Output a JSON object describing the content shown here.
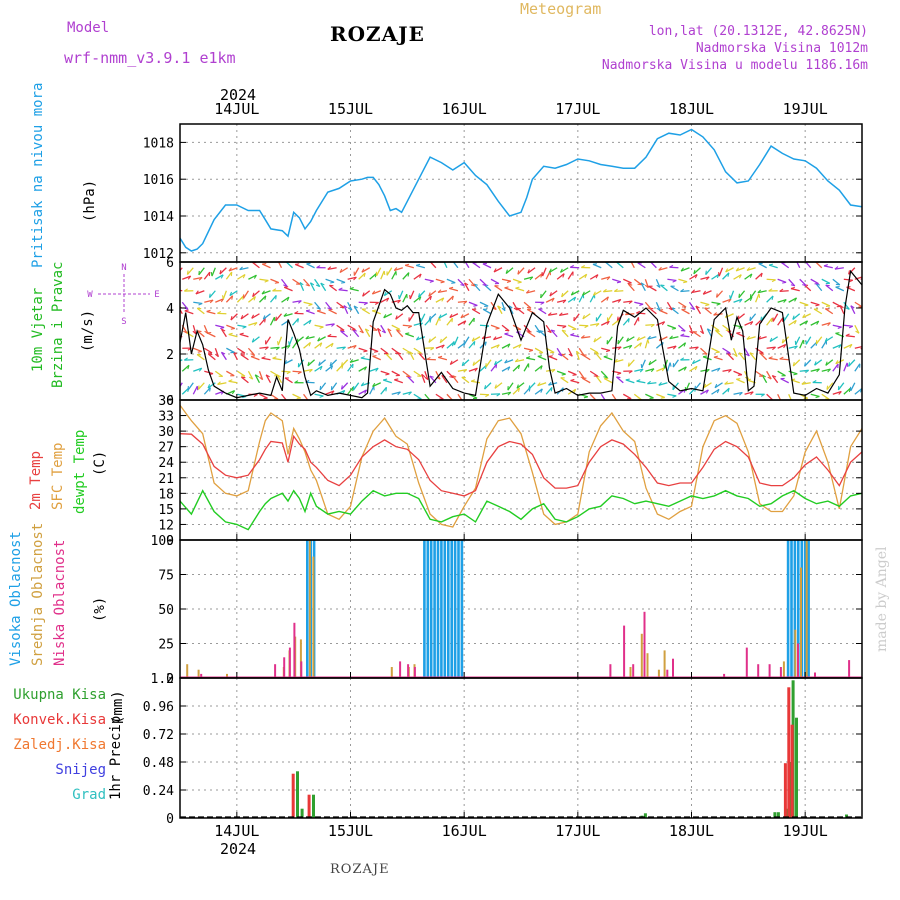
{
  "header": {
    "model_label": "Model",
    "model_name": "wrf-nmm_v3.9.1 e1km",
    "station": "ROZAJE",
    "meteogram": "Meteogram",
    "lonlat": "lon,lat (20.1312E, 42.8625N)",
    "altitude": "Nadmorska Visina 1012m",
    "model_altitude": "Nadmorska Visina u modelu 1186.16m",
    "footer_station": "ROZAJE",
    "watermark": "made by Angel"
  },
  "colors": {
    "pressure": "#1ea0e6",
    "wind_axis_label": "#22bb22",
    "compass": "#b040d0",
    "t2m": "#e84040",
    "sfc": "#e0a040",
    "dewpt": "#22cc22",
    "cloud_high": "#1ea0e6",
    "cloud_mid": "#d0a040",
    "cloud_low": "#e0308a",
    "precip_total": "#30a030",
    "precip_conv": "#e83838",
    "precip_frozen": "#f07830",
    "snow": "#4040e0",
    "hail": "#30c0c0",
    "wind_barbs": [
      "#9b30e0",
      "#2ea0d0",
      "#20c0c0",
      "#30c030",
      "#e0d030",
      "#e83040",
      "#f06040"
    ]
  },
  "time_axis": {
    "year_label": "2024",
    "day_labels": [
      "14JUL",
      "15JUL",
      "16JUL",
      "17JUL",
      "18JUL",
      "19JUL"
    ]
  },
  "compass": {
    "n": "N",
    "s": "S",
    "w": "W",
    "e": "E"
  },
  "chart_data": [
    {
      "type": "line",
      "name": "pressure",
      "ylabel_main": "Pritisak na nivou mora",
      "ylabel_unit": "(hPa)",
      "ylim": [
        1011.5,
        1019
      ],
      "yticks": [
        1012,
        1014,
        1016,
        1018
      ],
      "x_unit": "days from 14JUL 00:00",
      "x_range": [
        -0.5,
        5.5
      ],
      "x": [
        -0.5,
        -0.45,
        -0.4,
        -0.35,
        -0.3,
        -0.2,
        -0.1,
        0,
        0.1,
        0.2,
        0.25,
        0.3,
        0.4,
        0.45,
        0.5,
        0.55,
        0.6,
        0.65,
        0.7,
        0.8,
        0.9,
        1,
        1.1,
        1.15,
        1.2,
        1.25,
        1.3,
        1.35,
        1.4,
        1.45,
        1.5,
        1.6,
        1.7,
        1.8,
        1.9,
        2,
        2.1,
        2.2,
        2.3,
        2.4,
        2.5,
        2.55,
        2.6,
        2.7,
        2.8,
        2.9,
        3,
        3.1,
        3.2,
        3.3,
        3.4,
        3.5,
        3.6,
        3.7,
        3.8,
        3.9,
        4,
        4.1,
        4.2,
        4.3,
        4.4,
        4.5,
        4.6,
        4.7,
        4.8,
        4.9,
        5,
        5.1,
        5.2,
        5.3,
        5.4,
        5.5
      ],
      "values": [
        1012.8,
        1012.3,
        1012.1,
        1012.2,
        1012.5,
        1013.8,
        1014.6,
        1014.6,
        1014.3,
        1014.3,
        1013.8,
        1013.3,
        1013.2,
        1012.9,
        1014.2,
        1013.9,
        1013.3,
        1013.7,
        1014.3,
        1015.3,
        1015.5,
        1015.9,
        1016.0,
        1016.1,
        1016.1,
        1015.7,
        1015.1,
        1014.3,
        1014.4,
        1014.2,
        1014.8,
        1016.0,
        1017.2,
        1016.9,
        1016.5,
        1016.9,
        1016.2,
        1015.7,
        1014.8,
        1014.0,
        1014.2,
        1015.0,
        1016.0,
        1016.7,
        1016.6,
        1016.8,
        1017.1,
        1017.0,
        1016.8,
        1016.7,
        1016.6,
        1016.6,
        1017.2,
        1018.2,
        1018.5,
        1018.4,
        1018.7,
        1018.3,
        1017.6,
        1016.4,
        1015.8,
        1015.9,
        1016.8,
        1017.8,
        1017.4,
        1017.1,
        1017.0,
        1016.6,
        1015.9,
        1015.4,
        1014.6,
        1014.5
      ]
    },
    {
      "type": "line",
      "name": "wind",
      "ylabel_main": "10m Vjetar",
      "ylabel_second": "Brzina i Pravac",
      "ylabel_unit": "(m/s)",
      "ylim": [
        0,
        6
      ],
      "yticks": [
        0,
        2,
        4,
        6
      ],
      "x_unit": "days from 14JUL 00:00",
      "x_range": [
        -0.5,
        5.5
      ],
      "x": [
        -0.5,
        -0.45,
        -0.4,
        -0.35,
        -0.3,
        -0.25,
        -0.2,
        -0.1,
        0,
        0.1,
        0.2,
        0.3,
        0.35,
        0.4,
        0.45,
        0.5,
        0.55,
        0.6,
        0.65,
        0.7,
        0.8,
        0.9,
        1,
        1.1,
        1.15,
        1.2,
        1.3,
        1.35,
        1.4,
        1.45,
        1.5,
        1.55,
        1.6,
        1.7,
        1.8,
        1.9,
        2,
        2.1,
        2.2,
        2.3,
        2.4,
        2.5,
        2.6,
        2.7,
        2.75,
        2.8,
        2.9,
        3,
        3.1,
        3.2,
        3.3,
        3.35,
        3.4,
        3.5,
        3.6,
        3.7,
        3.8,
        3.9,
        4,
        4.1,
        4.2,
        4.3,
        4.35,
        4.4,
        4.45,
        4.5,
        4.55,
        4.6,
        4.7,
        4.8,
        4.9,
        5,
        5.1,
        5.2,
        5.3,
        5.35,
        5.4,
        5.45,
        5.5
      ],
      "values": [
        2.5,
        3.8,
        2.0,
        3.0,
        2.4,
        1.3,
        0.6,
        0.3,
        0.1,
        0.2,
        0.3,
        0.2,
        1.0,
        0.4,
        3.5,
        2.9,
        2.2,
        1.0,
        0.2,
        0.4,
        0.2,
        0.3,
        0.2,
        0.1,
        0.3,
        3.4,
        4.8,
        4.6,
        4.0,
        3.9,
        4.1,
        3.8,
        3.8,
        0.6,
        1.2,
        0.5,
        0.3,
        0.2,
        3.3,
        4.6,
        4.0,
        2.6,
        3.8,
        3.4,
        1.4,
        0.3,
        0.5,
        0.2,
        0.3,
        0.3,
        0.4,
        3.2,
        3.9,
        3.6,
        4.0,
        3.5,
        0.8,
        0.4,
        0.5,
        0.4,
        3.5,
        4.0,
        2.6,
        3.6,
        3.0,
        0.4,
        0.6,
        3.3,
        4.0,
        3.8,
        0.3,
        0.2,
        0.5,
        0.3,
        1.1,
        4.0,
        5.6,
        5.3,
        5.0
      ]
    },
    {
      "type": "line",
      "name": "temperature",
      "ylabel_1": "2m Temp",
      "ylabel_2": "SFC Temp",
      "ylabel_3": "dewpt Temp",
      "ylabel_unit": "(C)",
      "ylim": [
        9,
        36
      ],
      "yticks": [
        9,
        12,
        15,
        18,
        21,
        24,
        27,
        30,
        33,
        36
      ],
      "x_unit": "days from 14JUL 00:00",
      "x_range": [
        -0.5,
        5.5
      ],
      "x": [
        -0.5,
        -0.4,
        -0.3,
        -0.2,
        -0.1,
        0,
        0.1,
        0.2,
        0.25,
        0.3,
        0.4,
        0.45,
        0.5,
        0.55,
        0.6,
        0.65,
        0.7,
        0.8,
        0.9,
        1,
        1.1,
        1.2,
        1.3,
        1.4,
        1.5,
        1.6,
        1.7,
        1.8,
        1.9,
        2,
        2.1,
        2.2,
        2.3,
        2.4,
        2.5,
        2.6,
        2.7,
        2.8,
        2.9,
        3,
        3.1,
        3.2,
        3.3,
        3.4,
        3.5,
        3.6,
        3.7,
        3.8,
        3.9,
        4,
        4.1,
        4.2,
        4.3,
        4.4,
        4.5,
        4.6,
        4.7,
        4.8,
        4.9,
        5,
        5.1,
        5.2,
        5.3,
        5.4,
        5.5
      ],
      "series": [
        {
          "name": "2m Temp",
          "values": [
            29.5,
            29.4,
            27.5,
            23.2,
            21.5,
            21.0,
            21.5,
            24.5,
            26.5,
            28.0,
            27.7,
            24.0,
            29.0,
            27.5,
            26.5,
            24.0,
            23.0,
            20.5,
            19.5,
            21.5,
            25.0,
            27.0,
            28.3,
            27.0,
            26.5,
            24.5,
            20.5,
            18.5,
            18.0,
            17.5,
            18.5,
            24.0,
            27.0,
            28.0,
            27.5,
            25.5,
            21.0,
            19.0,
            19.0,
            19.5,
            24.0,
            27.0,
            28.3,
            27.5,
            25.5,
            23.0,
            20.0,
            19.5,
            20.0,
            20.0,
            23.0,
            26.5,
            28.0,
            27.0,
            25.0,
            20.0,
            19.5,
            19.5,
            21.0,
            23.5,
            25.0,
            22.5,
            19.5,
            24.0,
            26.0
          ]
        },
        {
          "name": "SFC Temp",
          "values": [
            35.0,
            32.0,
            29.5,
            20.0,
            18.0,
            17.5,
            18.5,
            28.0,
            32.0,
            33.5,
            32.0,
            25.5,
            30.5,
            28.5,
            26.0,
            22.5,
            20.5,
            14.0,
            13.0,
            15.5,
            25.0,
            30.0,
            32.5,
            29.0,
            27.5,
            20.0,
            14.0,
            12.0,
            11.5,
            15.5,
            19.0,
            28.5,
            32.0,
            32.5,
            29.5,
            22.0,
            14.0,
            12.0,
            12.5,
            14.0,
            26.0,
            31.0,
            33.5,
            30.0,
            28.0,
            19.0,
            14.0,
            13.0,
            14.5,
            15.5,
            27.0,
            32.0,
            33.0,
            31.5,
            26.0,
            16.0,
            14.5,
            14.5,
            17.5,
            26.0,
            30.0,
            24.0,
            15.0,
            27.0,
            30.5
          ]
        },
        {
          "name": "dewpt Temp",
          "values": [
            16.5,
            14.0,
            18.5,
            14.5,
            12.5,
            12.0,
            11.0,
            14.5,
            16.0,
            17.0,
            18.0,
            16.5,
            18.5,
            17.0,
            14.5,
            18.0,
            15.5,
            14.0,
            14.5,
            14.0,
            16.5,
            18.5,
            17.5,
            18.0,
            18.0,
            17.0,
            13.0,
            12.5,
            13.5,
            14.0,
            12.5,
            16.5,
            15.5,
            14.5,
            13.0,
            15.0,
            16.0,
            13.0,
            12.5,
            13.5,
            15.0,
            15.5,
            17.5,
            17.0,
            16.0,
            16.5,
            16.0,
            15.5,
            16.5,
            17.5,
            17.0,
            17.5,
            18.5,
            17.5,
            17.0,
            15.5,
            16.0,
            17.5,
            18.5,
            17.0,
            16.0,
            16.5,
            15.5,
            17.5,
            18.0
          ]
        }
      ]
    },
    {
      "type": "bar",
      "name": "cloud_cover",
      "ylabel_1": "Visoka Oblacnost",
      "ylabel_2": "Srednja Oblacnost",
      "ylabel_3": "Niska Oblacnost",
      "ylabel_unit": "(%)",
      "ylim": [
        0,
        100
      ],
      "yticks": [
        0,
        25,
        50,
        75,
        100
      ],
      "x_unit": "days from 14JUL 00:00",
      "x_range": [
        -0.5,
        5.5
      ],
      "series": [
        {
          "name": "Visoka Oblacnost",
          "x": [
            0.62,
            0.65,
            0.68,
            1.65,
            1.68,
            1.71,
            1.74,
            1.77,
            1.8,
            1.83,
            1.86,
            1.89,
            1.92,
            1.95,
            1.98,
            4.85,
            4.88,
            4.91,
            4.94,
            4.97,
            5.0,
            5.03
          ],
          "values": [
            100,
            100,
            100,
            100,
            100,
            100,
            100,
            100,
            100,
            100,
            100,
            100,
            100,
            100,
            100,
            100,
            100,
            100,
            100,
            100,
            100,
            100
          ]
        },
        {
          "name": "Srednja Oblacnost",
          "x": [
            -0.45,
            -0.35,
            -0.1,
            0.4,
            0.45,
            0.5,
            0.55,
            0.63,
            0.66,
            1.35,
            1.5,
            1.55,
            3.45,
            3.55,
            3.6,
            3.7,
            3.75,
            4.8,
            4.9,
            4.95,
            5.0
          ],
          "values": [
            10,
            6,
            3,
            8,
            20,
            30,
            28,
            100,
            88,
            8,
            8,
            10,
            8,
            32,
            18,
            6,
            20,
            12,
            35,
            80,
            100
          ]
        },
        {
          "name": "Niska Oblacnost",
          "x": [
            -0.3,
            0.35,
            0.43,
            0.48,
            0.52,
            0.58,
            1.45,
            1.52,
            1.58,
            3.3,
            3.42,
            3.5,
            3.6,
            3.8,
            3.85,
            4.3,
            4.5,
            4.6,
            4.7,
            4.8,
            4.95,
            5.1,
            5.4
          ],
          "values": [
            3,
            10,
            15,
            22,
            40,
            12,
            12,
            10,
            8,
            10,
            38,
            10,
            48,
            6,
            14,
            3,
            22,
            10,
            10,
            8,
            25,
            4,
            13
          ]
        }
      ]
    },
    {
      "type": "bar",
      "name": "precipitation",
      "ylabel_main": "1hr Precip",
      "ylabel_unit": "(mm)",
      "legend": [
        "Ukupna Kisa",
        "Konvek.Kisa",
        "Zaledj.Kisa",
        "Snijeg",
        "Grad"
      ],
      "ylim": [
        0,
        1.2
      ],
      "yticks": [
        0,
        0.24,
        0.48,
        0.72,
        0.96,
        1.2
      ],
      "x_unit": "days from 14JUL 00:00",
      "x_range": [
        -0.5,
        5.5
      ],
      "series": [
        {
          "name": "Ukupna Kisa",
          "x": [
            0.52,
            0.56,
            0.66,
            3.55,
            3.58,
            4.72,
            4.75,
            4.82,
            4.85,
            4.88,
            4.91,
            5.35
          ],
          "values": [
            0.4,
            0.08,
            0.2,
            0.02,
            0.04,
            0.05,
            0.05,
            0.08,
            0.48,
            1.18,
            0.86,
            0.03
          ]
        },
        {
          "name": "Konvek.Kisa",
          "x": [
            0.51,
            0.65,
            4.84,
            4.87,
            4.9
          ],
          "values": [
            0.38,
            0.2,
            0.47,
            1.12,
            0.8
          ]
        }
      ]
    }
  ]
}
